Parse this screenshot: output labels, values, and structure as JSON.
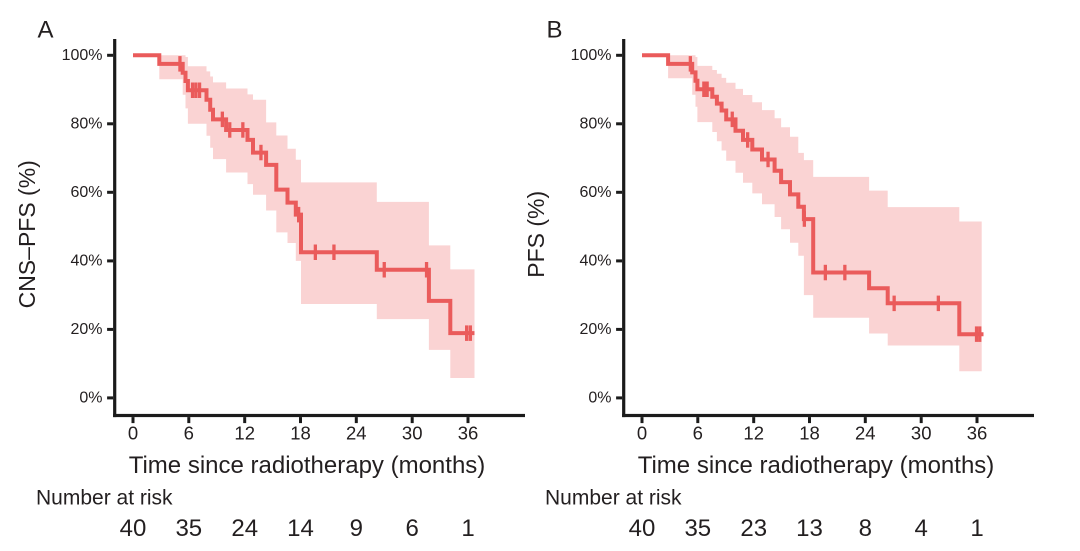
{
  "figure": {
    "background": "#ffffff",
    "panel_labels": [
      "A",
      "B"
    ]
  },
  "chart_data": {
    "type": "line",
    "subtype": "kaplan-meier-survival",
    "x_axis": {
      "label": "Time since radiotherapy (months)",
      "ticks": [
        0,
        6,
        12,
        18,
        24,
        30,
        36
      ],
      "range": [
        0,
        42
      ]
    },
    "y_axis": {
      "tick_labels": [
        "100%",
        "80%",
        "60%",
        "40%",
        "20%",
        "0%"
      ],
      "tick_values": [
        100,
        80,
        60,
        40,
        20,
        0
      ],
      "range": [
        0,
        100
      ]
    },
    "grid": "off",
    "legend": "none",
    "colors": {
      "line": "#ea5b5b",
      "band": "#fad3d3",
      "axis": "#1b1b1b",
      "text": "#231f20"
    },
    "panels": [
      {
        "label": "A",
        "ylabel": "CNS–PFS (%)",
        "xlabel": "Time since radiotherapy (months)",
        "steps": [
          [
            0,
            100
          ],
          [
            2.83,
            97.5
          ],
          [
            5.34,
            94.9
          ],
          [
            5.64,
            92.5
          ],
          [
            5.9,
            89.8
          ],
          [
            7.9,
            87.0
          ],
          [
            8.3,
            84.1
          ],
          [
            8.6,
            81.3
          ],
          [
            10.0,
            78.2
          ],
          [
            12.3,
            75.3
          ],
          [
            12.9,
            71.6
          ],
          [
            14.3,
            68.0
          ],
          [
            15.4,
            60.8
          ],
          [
            16.6,
            57.0
          ],
          [
            17.5,
            53.5
          ],
          [
            18.05,
            42.5
          ],
          [
            26.2,
            37.4
          ],
          [
            31.8,
            28.3
          ],
          [
            34.1,
            18.9
          ]
        ],
        "end_time": 36.7,
        "censors": [
          [
            5.05,
            97.5
          ],
          [
            6.4,
            89.8
          ],
          [
            6.75,
            89.8
          ],
          [
            7.15,
            89.8
          ],
          [
            9.6,
            81.3
          ],
          [
            10.4,
            78.2
          ],
          [
            11.8,
            78.2
          ],
          [
            13.75,
            71.6
          ],
          [
            17.8,
            53.5
          ],
          [
            19.6,
            42.5
          ],
          [
            21.6,
            42.5
          ],
          [
            27.0,
            37.4
          ],
          [
            31.55,
            37.4
          ],
          [
            35.85,
            18.9
          ],
          [
            36.25,
            18.9
          ]
        ],
        "band": [
          [
            2.83,
            5.34,
            93.0,
            100
          ],
          [
            5.34,
            5.64,
            88.5,
            100
          ],
          [
            5.64,
            5.9,
            84.5,
            99.5
          ],
          [
            5.9,
            7.9,
            80.0,
            96.8
          ],
          [
            7.9,
            8.3,
            76.5,
            95.3
          ],
          [
            8.3,
            8.6,
            73.0,
            93.8
          ],
          [
            8.6,
            10.0,
            69.7,
            92.1
          ],
          [
            10.0,
            12.3,
            65.8,
            90.3
          ],
          [
            12.3,
            12.9,
            62.4,
            88.6
          ],
          [
            12.9,
            14.3,
            59.3,
            87.0
          ],
          [
            14.3,
            15.4,
            54.7,
            80.4
          ],
          [
            15.4,
            16.6,
            48.3,
            76.6
          ],
          [
            16.6,
            17.5,
            45.2,
            72.7
          ],
          [
            17.5,
            18.05,
            40.0,
            69.5
          ],
          [
            18.05,
            26.2,
            27.4,
            62.9
          ],
          [
            26.2,
            31.8,
            23.0,
            57.2
          ],
          [
            31.8,
            34.1,
            14.0,
            44.5
          ],
          [
            34.1,
            36.7,
            5.8,
            37.5
          ]
        ],
        "risk_label": "Number at risk",
        "risk_times": [
          0,
          6,
          12,
          18,
          24,
          30,
          36
        ],
        "risk_counts": [
          40,
          35,
          24,
          14,
          9,
          6,
          1
        ]
      },
      {
        "label": "B",
        "ylabel": "PFS (%)",
        "xlabel": "Time since radiotherapy (months)",
        "steps": [
          [
            0,
            100
          ],
          [
            2.8,
            97.5
          ],
          [
            5.4,
            95.0
          ],
          [
            5.75,
            92.6
          ],
          [
            5.95,
            90.1
          ],
          [
            7.55,
            87.9
          ],
          [
            8.05,
            85.9
          ],
          [
            8.55,
            83.9
          ],
          [
            9.05,
            81.3
          ],
          [
            10.05,
            78.0
          ],
          [
            10.85,
            75.3
          ],
          [
            11.85,
            72.5
          ],
          [
            12.9,
            69.6
          ],
          [
            14.25,
            66.3
          ],
          [
            14.95,
            63.0
          ],
          [
            15.9,
            59.4
          ],
          [
            16.8,
            55.8
          ],
          [
            17.4,
            52.2
          ],
          [
            18.4,
            36.6
          ],
          [
            24.4,
            32.0
          ],
          [
            26.4,
            27.6
          ],
          [
            34.1,
            18.6
          ]
        ],
        "end_time": 36.7,
        "censors": [
          [
            5.2,
            97.5
          ],
          [
            6.65,
            90.1
          ],
          [
            7.0,
            90.1
          ],
          [
            9.7,
            81.3
          ],
          [
            11.35,
            75.3
          ],
          [
            13.55,
            69.6
          ],
          [
            17.45,
            52.2
          ],
          [
            19.7,
            36.6
          ],
          [
            21.8,
            36.6
          ],
          [
            27.1,
            27.6
          ],
          [
            31.85,
            27.6
          ],
          [
            35.95,
            18.6
          ],
          [
            36.3,
            18.6
          ]
        ],
        "band": [
          [
            2.8,
            5.4,
            93.3,
            100
          ],
          [
            5.4,
            5.75,
            88.5,
            100
          ],
          [
            5.75,
            5.95,
            85.0,
            99.5
          ],
          [
            5.95,
            7.55,
            80.5,
            96.9
          ],
          [
            7.55,
            8.05,
            77.6,
            95.7
          ],
          [
            8.05,
            8.55,
            74.9,
            94.6
          ],
          [
            8.55,
            9.05,
            72.2,
            93.4
          ],
          [
            9.05,
            10.05,
            69.2,
            92.0
          ],
          [
            10.05,
            10.85,
            65.7,
            90.2
          ],
          [
            10.85,
            11.85,
            62.8,
            88.4
          ],
          [
            11.85,
            12.9,
            59.7,
            86.3
          ],
          [
            12.9,
            14.25,
            56.5,
            84.0
          ],
          [
            14.25,
            14.95,
            52.8,
            81.6
          ],
          [
            14.95,
            15.9,
            49.2,
            79.0
          ],
          [
            15.9,
            16.8,
            45.3,
            76.2
          ],
          [
            16.8,
            17.4,
            41.5,
            71.5
          ],
          [
            17.4,
            18.4,
            30.0,
            69.4
          ],
          [
            18.4,
            24.4,
            23.4,
            64.5
          ],
          [
            24.4,
            26.4,
            18.8,
            60.5
          ],
          [
            26.4,
            34.1,
            15.3,
            55.7
          ],
          [
            34.1,
            36.5,
            7.8,
            51.5
          ]
        ],
        "risk_label": "Number at risk",
        "risk_times": [
          0,
          6,
          12,
          18,
          24,
          30,
          36
        ],
        "risk_counts": [
          40,
          35,
          23,
          13,
          8,
          4,
          1
        ]
      }
    ]
  }
}
